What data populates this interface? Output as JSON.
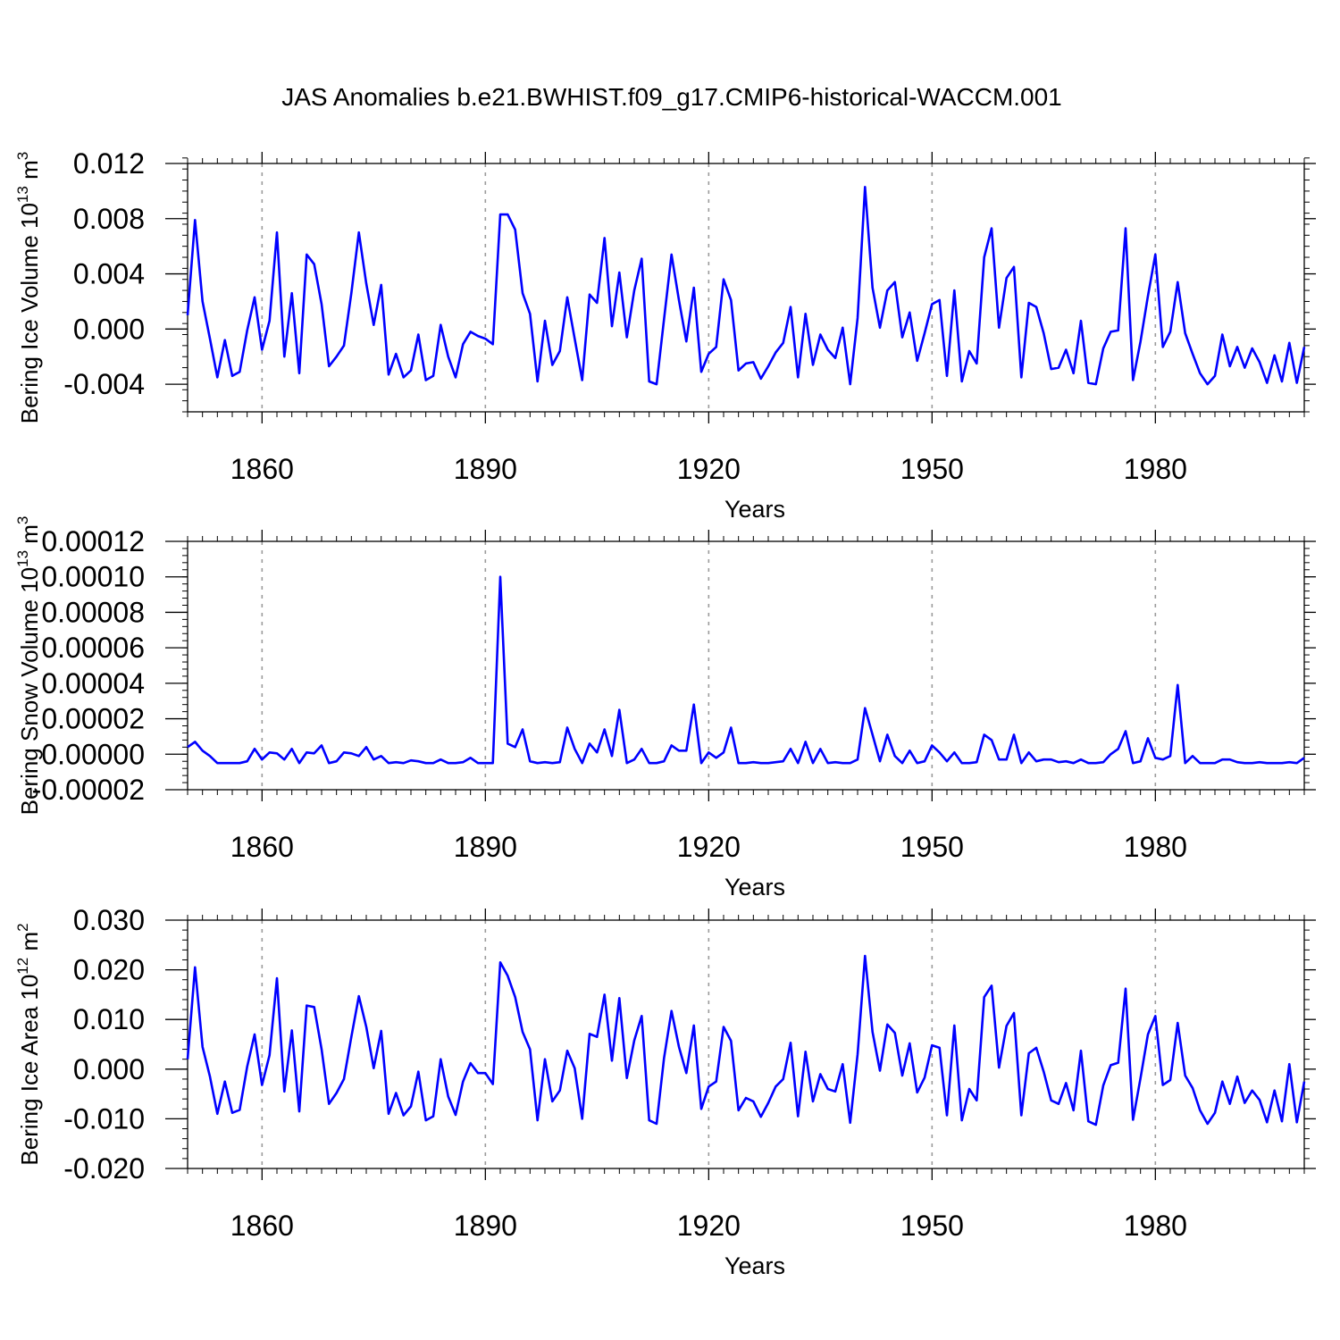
{
  "title": "JAS Anomalies b.e21.BWHIST.f09_g17.CMIP6-historical-WACCM.001",
  "chart_data": [
    {
      "type": "line",
      "panel": "ice-volume",
      "ylabel": "Bering Ice Volume 10",
      "ylabel_exp": "13",
      "ylabel_unit": "m",
      "ylabel_unit_exp": "3",
      "xlabel": "Years",
      "xlim": [
        1850,
        2000
      ],
      "ylim": [
        -0.006,
        0.012
      ],
      "yticks": [
        -0.004,
        0.0,
        0.004,
        0.008,
        0.012
      ],
      "ytick_labels": [
        "-0.004",
        "0.000",
        "0.004",
        "0.008",
        "0.012"
      ],
      "xticks": [
        1860,
        1890,
        1920,
        1950,
        1980
      ],
      "xtick_labels": [
        "1860",
        "1890",
        "1920",
        "1950",
        "1980"
      ],
      "line_color": "#0000ff",
      "x_start": 1850,
      "values": [
        0.001,
        0.0079,
        0.002,
        -0.0007,
        -0.0035,
        -0.0008,
        -0.0034,
        -0.0031,
        -0.0001,
        0.0023,
        -0.0015,
        0.0006,
        0.007,
        -0.002,
        0.0026,
        -0.0032,
        0.0054,
        0.0047,
        0.0018,
        -0.0027,
        -0.002,
        -0.0012,
        0.0026,
        0.007,
        0.0033,
        0.0003,
        0.0032,
        -0.0033,
        -0.0018,
        -0.0035,
        -0.003,
        -0.0004,
        -0.0037,
        -0.0034,
        0.0003,
        -0.002,
        -0.0035,
        -0.0011,
        -0.0002,
        -0.0005,
        -0.0007,
        -0.0011,
        0.0083,
        0.0083,
        0.0072,
        0.0026,
        0.0011,
        -0.0038,
        0.0006,
        -0.0026,
        -0.0016,
        0.0023,
        -0.0007,
        -0.0037,
        0.0025,
        0.0019,
        0.0066,
        0.0002,
        0.0041,
        -0.0006,
        0.0028,
        0.0051,
        -0.0038,
        -0.004,
        0.0007,
        0.0054,
        0.0021,
        -0.0009,
        0.003,
        -0.0031,
        -0.0018,
        -0.0013,
        0.0036,
        0.0021,
        -0.003,
        -0.0025,
        -0.0024,
        -0.0036,
        -0.0027,
        -0.0017,
        -0.001,
        0.0016,
        -0.0035,
        0.0011,
        -0.0026,
        -0.0004,
        -0.0015,
        -0.0021,
        0.0001,
        -0.004,
        0.0008,
        0.0103,
        0.003,
        0.0001,
        0.0028,
        0.0034,
        -0.0006,
        0.0012,
        -0.0023,
        -0.0003,
        0.0018,
        0.0021,
        -0.0034,
        0.0028,
        -0.0038,
        -0.0016,
        -0.0025,
        0.0052,
        0.0073,
        0.0001,
        0.0037,
        0.0045,
        -0.0035,
        0.0019,
        0.0016,
        -0.0003,
        -0.0029,
        -0.0028,
        -0.0015,
        -0.0032,
        0.0006,
        -0.0039,
        -0.004,
        -0.0014,
        -0.0002,
        -0.0001,
        0.0073,
        -0.0037,
        -0.0009,
        0.0024,
        0.0054,
        -0.0013,
        -0.0002,
        0.0034,
        -0.0003,
        -0.0018,
        -0.0032,
        -0.004,
        -0.0034,
        -0.0004,
        -0.0027,
        -0.0013,
        -0.0028,
        -0.0014,
        -0.0024,
        -0.0039,
        -0.0019,
        -0.0038,
        -0.001,
        -0.0039,
        -0.0013
      ]
    },
    {
      "type": "line",
      "panel": "snow-volume",
      "ylabel": "Bering Snow Volume 10",
      "ylabel_exp": "13",
      "ylabel_unit": "m",
      "ylabel_unit_exp": "3",
      "xlabel": "Years",
      "xlim": [
        1850,
        2000
      ],
      "ylim": [
        -2e-05,
        0.00012
      ],
      "yticks": [
        -2e-05,
        0.0,
        2e-05,
        4e-05,
        6e-05,
        8e-05,
        0.0001,
        0.00012
      ],
      "ytick_labels": [
        "-0.00002",
        "0.00000",
        "0.00002",
        "0.00004",
        "0.00006",
        "0.00008",
        "0.00010",
        "0.00012"
      ],
      "xticks": [
        1860,
        1890,
        1920,
        1950,
        1980
      ],
      "xtick_labels": [
        "1860",
        "1890",
        "1920",
        "1950",
        "1980"
      ],
      "line_color": "#0000ff",
      "x_start": 1850,
      "values": [
        4e-06,
        7e-06,
        2e-06,
        -1e-06,
        -5e-06,
        -5e-06,
        -5e-06,
        -5e-06,
        -4e-06,
        3e-06,
        -3e-06,
        1e-06,
        5e-07,
        -3e-06,
        3e-06,
        -5e-06,
        1e-06,
        5e-07,
        5e-06,
        -5e-06,
        -4e-06,
        1e-06,
        5e-07,
        -1e-06,
        4e-06,
        -3e-06,
        -1e-06,
        -5e-06,
        -4.5e-06,
        -5e-06,
        -3.5e-06,
        -4e-06,
        -5e-06,
        -5e-06,
        -3e-06,
        -5e-06,
        -5e-06,
        -4.5e-06,
        -2e-06,
        -5e-06,
        -5e-06,
        -5e-06,
        0.0001,
        6e-06,
        4e-06,
        1.4e-05,
        -4e-06,
        -5e-06,
        -4.5e-06,
        -5e-06,
        -4.5e-06,
        1.5e-05,
        3e-06,
        -5e-06,
        6e-06,
        1e-06,
        1.4e-05,
        -1e-06,
        2.5e-05,
        -5e-06,
        -3e-06,
        3e-06,
        -5e-06,
        -5e-06,
        -4e-06,
        5e-06,
        2e-06,
        2e-06,
        2.8e-05,
        -5e-06,
        1e-06,
        -2e-06,
        1e-06,
        1.5e-05,
        -5e-06,
        -5e-06,
        -4.5e-06,
        -5e-06,
        -5e-06,
        -4.5e-06,
        -4e-06,
        3e-06,
        -5e-06,
        7e-06,
        -5e-06,
        3e-06,
        -5e-06,
        -4.5e-06,
        -5e-06,
        -5e-06,
        -3e-06,
        2.6e-05,
        1.1e-05,
        -4e-06,
        1.1e-05,
        -1e-06,
        -5e-06,
        2e-06,
        -5e-06,
        -4e-06,
        5e-06,
        1e-06,
        -4e-06,
        1e-06,
        -5e-06,
        -5e-06,
        -4.5e-06,
        1.1e-05,
        8e-06,
        -3e-06,
        -3e-06,
        1.1e-05,
        -5e-06,
        1e-06,
        -4e-06,
        -3e-06,
        -3e-06,
        -4.5e-06,
        -4e-06,
        -5e-06,
        -3e-06,
        -5e-06,
        -5e-06,
        -4.5e-06,
        0.0,
        3e-06,
        1.3e-05,
        -5e-06,
        -4e-06,
        9e-06,
        -2e-06,
        -3e-06,
        -1e-06,
        3.9e-05,
        -5e-06,
        -1e-06,
        -5e-06,
        -5e-06,
        -5e-06,
        -3e-06,
        -3e-06,
        -4.5e-06,
        -5e-06,
        -5e-06,
        -4.5e-06,
        -5e-06,
        -5e-06,
        -5e-06,
        -4.5e-06,
        -5e-06,
        -2e-06
      ]
    },
    {
      "type": "line",
      "panel": "ice-area",
      "ylabel": "Bering Ice Area 10",
      "ylabel_exp": "12",
      "ylabel_unit": "m",
      "ylabel_unit_exp": "2",
      "xlabel": "Years",
      "xlim": [
        1850,
        2000
      ],
      "ylim": [
        -0.02,
        0.03
      ],
      "yticks": [
        -0.02,
        -0.01,
        0.0,
        0.01,
        0.02,
        0.03
      ],
      "ytick_labels": [
        "-0.020",
        "-0.010",
        "0.000",
        "0.010",
        "0.020",
        "0.030"
      ],
      "xticks": [
        1860,
        1890,
        1920,
        1950,
        1980
      ],
      "xtick_labels": [
        "1860",
        "1890",
        "1920",
        "1950",
        "1980"
      ],
      "line_color": "#0000ff",
      "x_start": 1850,
      "values": [
        0.002,
        0.0205,
        0.0045,
        -0.0015,
        -0.009,
        -0.0025,
        -0.0088,
        -0.0082,
        0.0005,
        0.007,
        -0.0032,
        0.0028,
        0.0183,
        -0.0045,
        0.0078,
        -0.0085,
        0.0128,
        0.0125,
        0.004,
        -0.007,
        -0.0048,
        -0.002,
        0.0065,
        0.0147,
        0.0085,
        0.0002,
        0.0077,
        -0.009,
        -0.0048,
        -0.0093,
        -0.0075,
        -0.0005,
        -0.0103,
        -0.0095,
        0.002,
        -0.0055,
        -0.0092,
        -0.0025,
        0.0012,
        -0.0008,
        -0.0008,
        -0.003,
        0.0215,
        0.0188,
        0.0145,
        0.0075,
        0.004,
        -0.0103,
        0.002,
        -0.0065,
        -0.0043,
        0.0037,
        0.0002,
        -0.01,
        0.0071,
        0.0065,
        0.015,
        0.0017,
        0.0143,
        -0.0018,
        0.0058,
        0.0107,
        -0.0103,
        -0.011,
        0.0022,
        0.0117,
        0.0045,
        -0.0008,
        0.0088,
        -0.008,
        -0.0035,
        -0.0025,
        0.0085,
        0.0057,
        -0.0083,
        -0.0058,
        -0.0065,
        -0.0096,
        -0.0068,
        -0.0035,
        -0.002,
        0.0053,
        -0.0095,
        0.0035,
        -0.0065,
        -0.001,
        -0.004,
        -0.0045,
        0.001,
        -0.0108,
        0.003,
        0.0228,
        0.0075,
        -0.0003,
        0.009,
        0.0073,
        -0.0013,
        0.0052,
        -0.0047,
        -0.0017,
        0.0048,
        0.0043,
        -0.0093,
        0.0088,
        -0.0103,
        -0.004,
        -0.0063,
        0.0145,
        0.0168,
        0.0003,
        0.0087,
        0.0113,
        -0.0093,
        0.0032,
        0.0043,
        -0.0005,
        -0.0063,
        -0.007,
        -0.0028,
        -0.0083,
        0.0037,
        -0.0105,
        -0.0112,
        -0.0033,
        0.0008,
        0.0013,
        0.0162,
        -0.0102,
        -0.0018,
        0.007,
        0.0107,
        -0.0032,
        -0.0022,
        0.0093,
        -0.0013,
        -0.0038,
        -0.0083,
        -0.011,
        -0.0088,
        -0.0025,
        -0.007,
        -0.0015,
        -0.0068,
        -0.0043,
        -0.0062,
        -0.0107,
        -0.0043,
        -0.0105,
        0.001,
        -0.0107,
        -0.0025
      ]
    }
  ]
}
